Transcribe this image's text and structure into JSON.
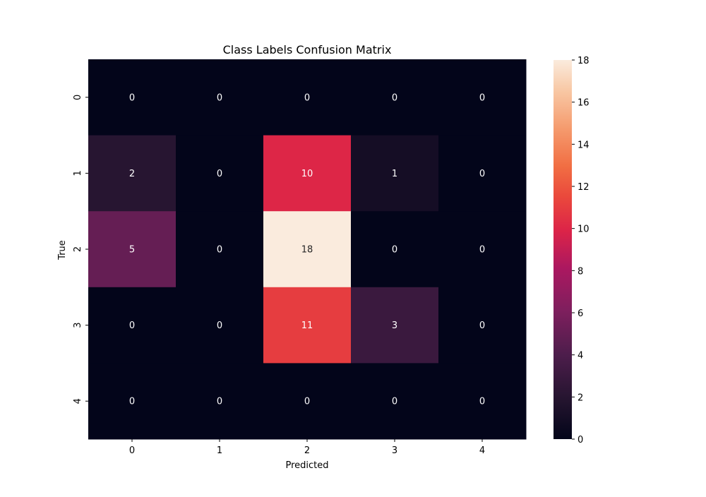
{
  "chart_data": {
    "type": "heatmap",
    "title": "Class Labels Confusion Matrix",
    "xlabel": "Predicted",
    "ylabel": "True",
    "x_categories": [
      "0",
      "1",
      "2",
      "3",
      "4"
    ],
    "y_categories": [
      "0",
      "1",
      "2",
      "3",
      "4"
    ],
    "values": [
      [
        0,
        0,
        0,
        0,
        0
      ],
      [
        2,
        0,
        10,
        1,
        0
      ],
      [
        5,
        0,
        18,
        0,
        0
      ],
      [
        0,
        0,
        11,
        3,
        0
      ],
      [
        0,
        0,
        0,
        0,
        0
      ]
    ],
    "colorbar": {
      "min": 0,
      "max": 18,
      "ticks": [
        0,
        2,
        4,
        6,
        8,
        10,
        12,
        14,
        16,
        18
      ],
      "colormap": "rocket"
    },
    "annotations": true
  }
}
